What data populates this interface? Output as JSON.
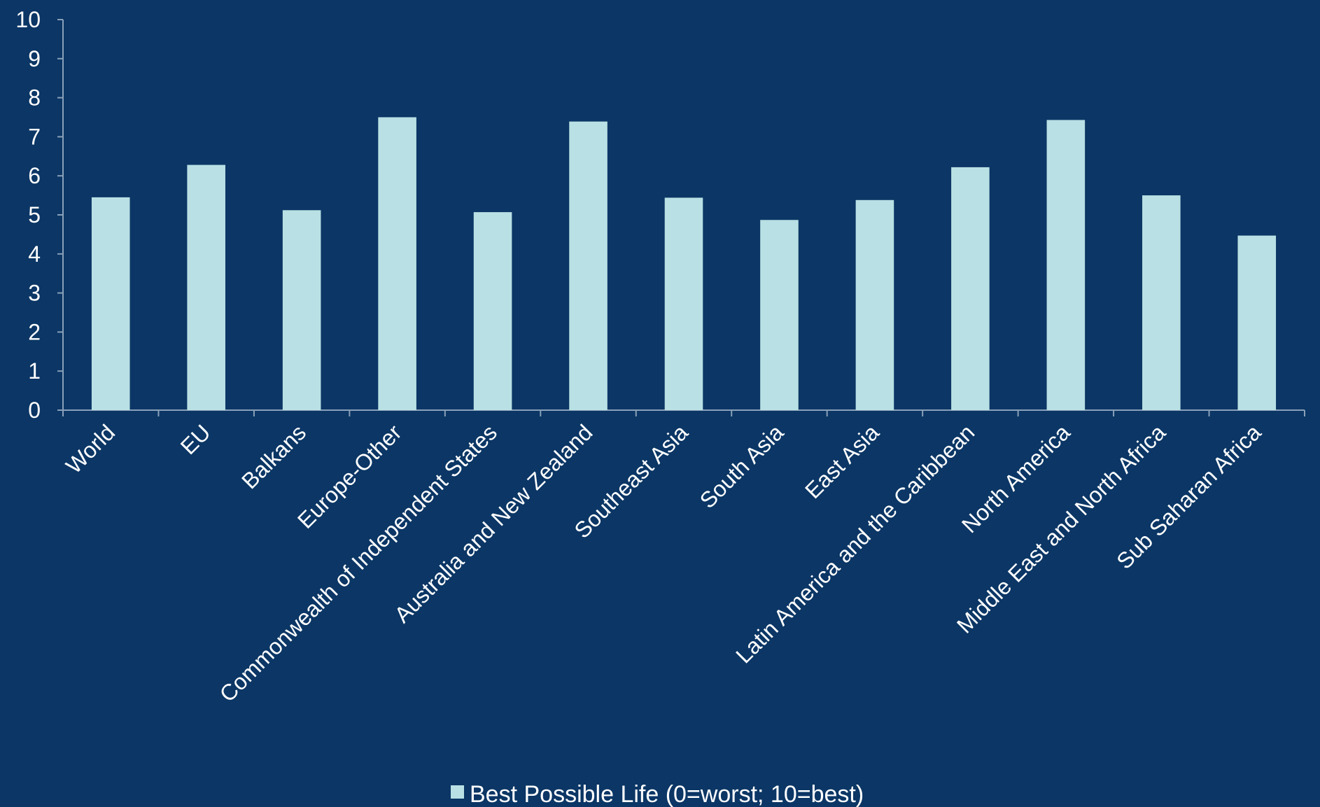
{
  "colors": {
    "background": "#0b3665",
    "bar": "#b9e0e4",
    "axis": "#8aa0b8",
    "text": "#ffffff"
  },
  "chart_data": {
    "type": "bar",
    "categories": [
      "World",
      "EU",
      "Balkans",
      "Europe-Other",
      "Commonwealth of Independent States",
      "Australia and New Zealand",
      "Southeast Asia",
      "South Asia",
      "East Asia",
      "Latin America and the Caribbean",
      "North America",
      "Middle East and North Africa",
      "Sub Saharan Africa"
    ],
    "series": [
      {
        "name": "Best Possible Life (0=worst; 10=best)",
        "values": [
          5.45,
          6.28,
          5.12,
          7.5,
          5.07,
          7.39,
          5.44,
          4.87,
          5.38,
          6.22,
          7.43,
          5.5,
          4.47
        ]
      }
    ],
    "ylim": [
      0,
      10
    ],
    "yticks": [
      "0",
      "1",
      "2",
      "3",
      "4",
      "5",
      "6",
      "7",
      "8",
      "9",
      "10"
    ],
    "grid": false,
    "legend_position": "bottom"
  }
}
